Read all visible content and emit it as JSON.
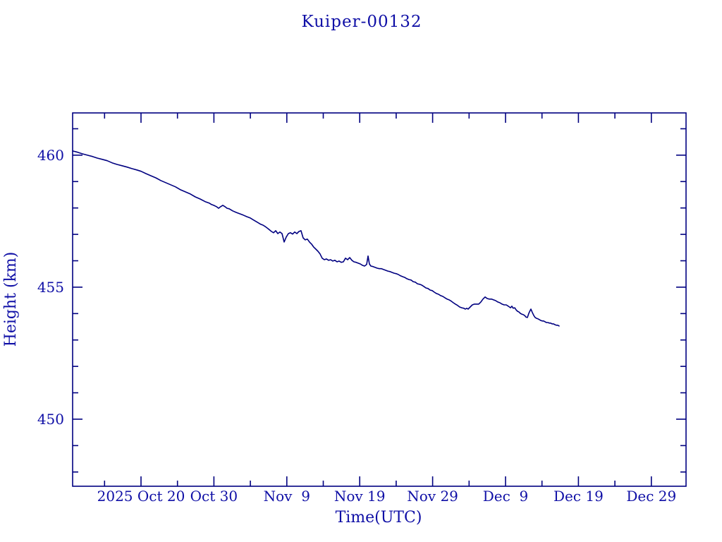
{
  "title": "Kuiper-00132",
  "colors": {
    "background": "#ffffff",
    "axis": "#000080",
    "line": "#000080",
    "text": "#0f0fa6"
  },
  "chart_data": {
    "type": "line",
    "title": "Kuiper-00132",
    "xlabel": "Time(UTC)",
    "ylabel": "Height (km)",
    "x_unit": "days since 2025-10-20 00:00 UTC",
    "xlim": [
      -9.38,
      74.76
    ],
    "ylim": [
      447.46,
      461.6
    ],
    "grid": false,
    "legend": null,
    "x_major_ticks": [
      {
        "t": 0,
        "label": "2025 Oct 20"
      },
      {
        "t": 10,
        "label": "Oct 30"
      },
      {
        "t": 20,
        "label": "Nov  9"
      },
      {
        "t": 30,
        "label": "Nov 19"
      },
      {
        "t": 40,
        "label": "Nov 29"
      },
      {
        "t": 50,
        "label": "Dec  9"
      },
      {
        "t": 60,
        "label": "Dec 19"
      },
      {
        "t": 70,
        "label": "Dec 29"
      }
    ],
    "x_minor_ticks": [
      -5,
      5,
      15,
      25,
      35,
      45,
      55,
      65
    ],
    "y_major_ticks": [
      {
        "v": 450,
        "label": "450"
      },
      {
        "v": 455,
        "label": "455"
      },
      {
        "v": 460,
        "label": "460"
      }
    ],
    "y_minor_ticks": [
      448,
      449,
      451,
      452,
      453,
      454,
      456,
      457,
      458,
      459,
      461
    ],
    "series": [
      {
        "name": "height",
        "points": [
          [
            -9.38,
            460.16
          ],
          [
            -8.7,
            460.11
          ],
          [
            -8.03,
            460.05
          ],
          [
            -7.35,
            460.0
          ],
          [
            -6.67,
            459.95
          ],
          [
            -6.0,
            459.89
          ],
          [
            -5.32,
            459.84
          ],
          [
            -4.64,
            459.79
          ],
          [
            -3.97,
            459.71
          ],
          [
            -3.29,
            459.65
          ],
          [
            -2.61,
            459.6
          ],
          [
            -1.93,
            459.55
          ],
          [
            -1.26,
            459.49
          ],
          [
            -0.58,
            459.44
          ],
          [
            0.0,
            459.39
          ],
          [
            0.68,
            459.3
          ],
          [
            1.35,
            459.22
          ],
          [
            2.03,
            459.14
          ],
          [
            2.71,
            459.04
          ],
          [
            3.39,
            458.96
          ],
          [
            4.06,
            458.88
          ],
          [
            4.74,
            458.8
          ],
          [
            5.42,
            458.69
          ],
          [
            6.09,
            458.61
          ],
          [
            6.77,
            458.53
          ],
          [
            7.45,
            458.42
          ],
          [
            8.12,
            458.34
          ],
          [
            8.8,
            458.24
          ],
          [
            9.38,
            458.18
          ],
          [
            9.67,
            458.13
          ],
          [
            9.96,
            458.1
          ],
          [
            10.35,
            458.05
          ],
          [
            10.64,
            457.99
          ],
          [
            10.93,
            458.05
          ],
          [
            11.22,
            458.1
          ],
          [
            11.51,
            458.05
          ],
          [
            11.8,
            457.99
          ],
          [
            12.09,
            457.97
          ],
          [
            12.57,
            457.89
          ],
          [
            13.06,
            457.83
          ],
          [
            13.54,
            457.78
          ],
          [
            14.02,
            457.73
          ],
          [
            14.51,
            457.67
          ],
          [
            14.99,
            457.62
          ],
          [
            15.47,
            457.54
          ],
          [
            15.96,
            457.46
          ],
          [
            16.44,
            457.38
          ],
          [
            16.73,
            457.35
          ],
          [
            17.02,
            457.3
          ],
          [
            17.41,
            457.22
          ],
          [
            17.89,
            457.11
          ],
          [
            18.18,
            457.06
          ],
          [
            18.47,
            457.14
          ],
          [
            18.76,
            457.03
          ],
          [
            19.05,
            457.09
          ],
          [
            19.34,
            457.03
          ],
          [
            19.63,
            456.71
          ],
          [
            19.92,
            456.9
          ],
          [
            20.21,
            457.03
          ],
          [
            20.5,
            457.06
          ],
          [
            20.79,
            457.01
          ],
          [
            21.08,
            457.09
          ],
          [
            21.37,
            457.03
          ],
          [
            21.66,
            457.11
          ],
          [
            21.95,
            457.14
          ],
          [
            22.24,
            456.87
          ],
          [
            22.53,
            456.79
          ],
          [
            22.82,
            456.82
          ],
          [
            23.11,
            456.71
          ],
          [
            23.4,
            456.63
          ],
          [
            23.69,
            456.52
          ],
          [
            23.98,
            456.44
          ],
          [
            24.27,
            456.36
          ],
          [
            24.56,
            456.26
          ],
          [
            24.85,
            456.1
          ],
          [
            25.15,
            456.04
          ],
          [
            25.44,
            456.07
          ],
          [
            25.73,
            456.02
          ],
          [
            26.02,
            456.04
          ],
          [
            26.31,
            455.99
          ],
          [
            26.6,
            456.02
          ],
          [
            26.89,
            455.96
          ],
          [
            27.18,
            455.99
          ],
          [
            27.47,
            455.94
          ],
          [
            27.76,
            455.96
          ],
          [
            28.05,
            456.1
          ],
          [
            28.34,
            456.04
          ],
          [
            28.63,
            456.12
          ],
          [
            28.92,
            456.02
          ],
          [
            29.21,
            455.96
          ],
          [
            29.5,
            455.94
          ],
          [
            29.79,
            455.91
          ],
          [
            30.08,
            455.88
          ],
          [
            30.37,
            455.83
          ],
          [
            30.66,
            455.8
          ],
          [
            30.95,
            455.86
          ],
          [
            31.14,
            456.18
          ],
          [
            31.33,
            455.88
          ],
          [
            31.53,
            455.8
          ],
          [
            31.82,
            455.78
          ],
          [
            32.11,
            455.75
          ],
          [
            32.4,
            455.72
          ],
          [
            32.69,
            455.7
          ],
          [
            32.98,
            455.7
          ],
          [
            33.27,
            455.67
          ],
          [
            33.56,
            455.64
          ],
          [
            33.85,
            455.61
          ],
          [
            34.14,
            455.59
          ],
          [
            34.43,
            455.56
          ],
          [
            34.72,
            455.53
          ],
          [
            35.01,
            455.51
          ],
          [
            35.3,
            455.48
          ],
          [
            35.59,
            455.43
          ],
          [
            35.88,
            455.4
          ],
          [
            36.17,
            455.37
          ],
          [
            36.46,
            455.32
          ],
          [
            36.75,
            455.29
          ],
          [
            37.04,
            455.27
          ],
          [
            37.33,
            455.21
          ],
          [
            37.62,
            455.19
          ],
          [
            37.91,
            455.13
          ],
          [
            38.2,
            455.11
          ],
          [
            38.49,
            455.08
          ],
          [
            38.78,
            455.03
          ],
          [
            39.07,
            454.97
          ],
          [
            39.36,
            454.95
          ],
          [
            39.65,
            454.89
          ],
          [
            39.94,
            454.87
          ],
          [
            40.23,
            454.81
          ],
          [
            40.52,
            454.76
          ],
          [
            40.81,
            454.73
          ],
          [
            41.1,
            454.68
          ],
          [
            41.39,
            454.65
          ],
          [
            41.68,
            454.6
          ],
          [
            41.97,
            454.55
          ],
          [
            42.26,
            454.52
          ],
          [
            42.55,
            454.47
          ],
          [
            42.84,
            454.41
          ],
          [
            43.13,
            454.36
          ],
          [
            43.42,
            454.31
          ],
          [
            43.71,
            454.25
          ],
          [
            44.0,
            454.22
          ],
          [
            44.29,
            454.2
          ],
          [
            44.49,
            454.17
          ],
          [
            44.68,
            454.2
          ],
          [
            44.87,
            454.17
          ],
          [
            45.16,
            454.25
          ],
          [
            45.45,
            454.33
          ],
          [
            45.74,
            454.36
          ],
          [
            46.03,
            454.36
          ],
          [
            46.32,
            454.36
          ],
          [
            46.62,
            454.44
          ],
          [
            46.91,
            454.55
          ],
          [
            47.2,
            454.63
          ],
          [
            47.49,
            454.57
          ],
          [
            47.78,
            454.55
          ],
          [
            48.07,
            454.55
          ],
          [
            48.36,
            454.52
          ],
          [
            48.65,
            454.49
          ],
          [
            48.94,
            454.44
          ],
          [
            49.23,
            454.41
          ],
          [
            49.52,
            454.36
          ],
          [
            49.81,
            454.33
          ],
          [
            50.1,
            454.33
          ],
          [
            50.39,
            454.28
          ],
          [
            50.68,
            454.22
          ],
          [
            50.87,
            454.28
          ],
          [
            51.06,
            454.2
          ],
          [
            51.26,
            454.22
          ],
          [
            51.45,
            454.14
          ],
          [
            51.64,
            454.09
          ],
          [
            51.84,
            454.06
          ],
          [
            52.03,
            454.01
          ],
          [
            52.22,
            453.98
          ],
          [
            52.42,
            453.96
          ],
          [
            52.61,
            453.93
          ],
          [
            52.8,
            453.87
          ],
          [
            53.0,
            453.85
          ],
          [
            53.19,
            454.01
          ],
          [
            53.39,
            454.12
          ],
          [
            53.48,
            454.17
          ],
          [
            53.68,
            454.04
          ],
          [
            53.87,
            453.93
          ],
          [
            54.06,
            453.85
          ],
          [
            54.26,
            453.82
          ],
          [
            54.45,
            453.8
          ],
          [
            54.64,
            453.77
          ],
          [
            54.84,
            453.74
          ],
          [
            55.03,
            453.72
          ],
          [
            55.22,
            453.72
          ],
          [
            55.42,
            453.69
          ],
          [
            55.61,
            453.66
          ],
          [
            55.8,
            453.66
          ],
          [
            56.0,
            453.64
          ],
          [
            56.19,
            453.64
          ],
          [
            56.38,
            453.61
          ],
          [
            56.58,
            453.61
          ],
          [
            56.77,
            453.58
          ],
          [
            56.96,
            453.56
          ],
          [
            57.16,
            453.56
          ],
          [
            57.35,
            453.53
          ]
        ]
      }
    ]
  }
}
